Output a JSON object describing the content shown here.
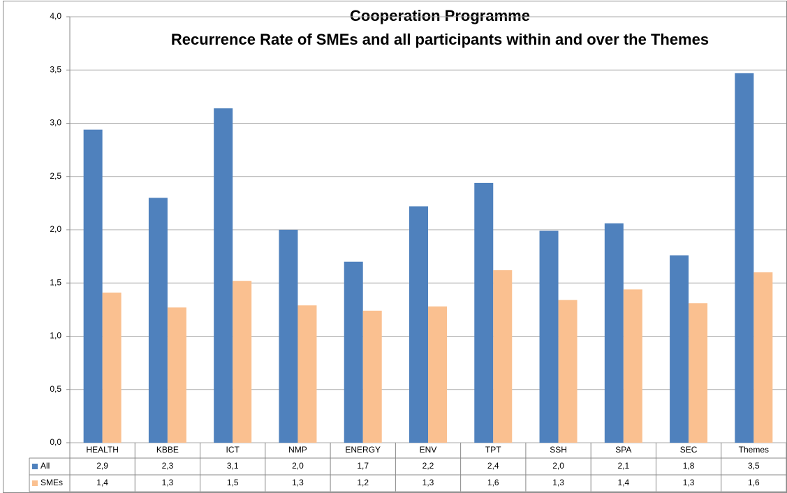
{
  "chart_data": {
    "type": "bar",
    "title": "Cooperation Programme",
    "subtitle": "Recurrence Rate of SMEs and all participants within and over the Themes",
    "categories": [
      "HEALTH",
      "KBBE",
      "ICT",
      "NMP",
      "ENERGY",
      "ENV",
      "TPT",
      "SSH",
      "SPA",
      "SEC",
      "Themes"
    ],
    "series": [
      {
        "name": "All",
        "color": "#4f81bd",
        "values": [
          2.94,
          2.3,
          3.14,
          2.0,
          1.7,
          2.22,
          2.44,
          1.99,
          2.06,
          1.76,
          3.47
        ],
        "value_labels": [
          "2,9",
          "2,3",
          "3,1",
          "2,0",
          "1,7",
          "2,2",
          "2,4",
          "2,0",
          "2,1",
          "1,8",
          "3,5"
        ]
      },
      {
        "name": "SMEs",
        "color": "#fac090",
        "values": [
          1.41,
          1.27,
          1.52,
          1.29,
          1.24,
          1.28,
          1.62,
          1.34,
          1.44,
          1.31,
          1.6
        ],
        "value_labels": [
          "1,4",
          "1,3",
          "1,5",
          "1,3",
          "1,2",
          "1,3",
          "1,6",
          "1,3",
          "1,4",
          "1,3",
          "1,6"
        ]
      }
    ],
    "ylim": [
      0,
      4
    ],
    "yticks": [
      {
        "value": 0,
        "label": "0,0"
      },
      {
        "value": 0.5,
        "label": "0,5"
      },
      {
        "value": 1,
        "label": "1,0"
      },
      {
        "value": 1.5,
        "label": "1,5"
      },
      {
        "value": 2,
        "label": "2,0"
      },
      {
        "value": 2.5,
        "label": "2,5"
      },
      {
        "value": 3,
        "label": "3,0"
      },
      {
        "value": 3.5,
        "label": "3,5"
      },
      {
        "value": 4,
        "label": "4,0"
      }
    ],
    "grid": true
  }
}
